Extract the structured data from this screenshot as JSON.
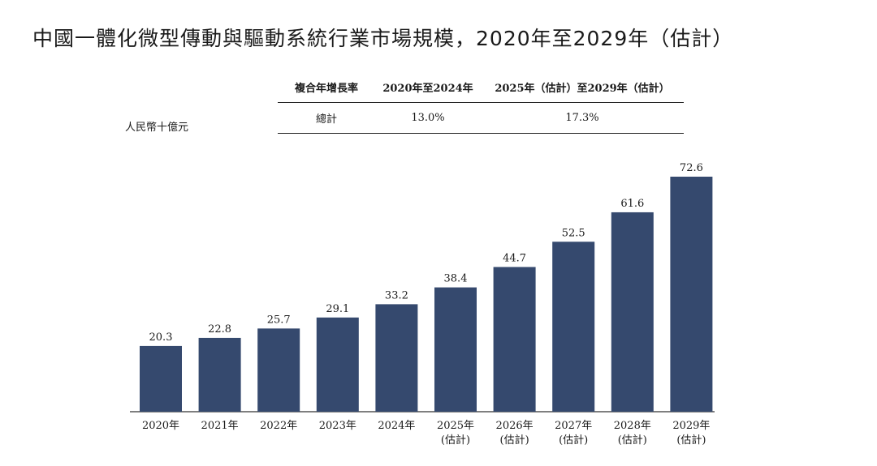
{
  "title": "中國一體化微型傳動與驅動系統行業市場規模，2020年至2029年（估計）",
  "unit_label": "人民幣十億元",
  "cagr_table": {
    "headers": [
      "複合年增長率",
      "2020年至2024年",
      "2025年（估計）至2029年（估計）"
    ],
    "row": [
      "總計",
      "13.0%",
      "17.3%"
    ]
  },
  "colors": {
    "bar": "#35496e",
    "axis": "#333333"
  },
  "chart_data": {
    "type": "bar",
    "categories": [
      "2020年",
      "2021年",
      "2022年",
      "2023年",
      "2024年",
      "2025年",
      "2026年",
      "2027年",
      "2028年",
      "2029年"
    ],
    "category_sublabels": [
      "",
      "",
      "",
      "",
      "",
      "(估計)",
      "(估計)",
      "(估計)",
      "(估計)",
      "(估計)"
    ],
    "values": [
      20.3,
      22.8,
      25.7,
      29.1,
      33.2,
      38.4,
      44.7,
      52.5,
      61.6,
      72.6
    ],
    "value_labels": [
      "20.3",
      "22.8",
      "25.7",
      "29.1",
      "33.2",
      "38.4",
      "44.7",
      "52.5",
      "61.6",
      "72.6"
    ],
    "title": "中國一體化微型傳動與驅動系統行業市場規模，2020年至2029年（估計）",
    "ylabel": "人民幣十億元",
    "ylim": [
      0,
      72.6
    ],
    "grid": false
  }
}
